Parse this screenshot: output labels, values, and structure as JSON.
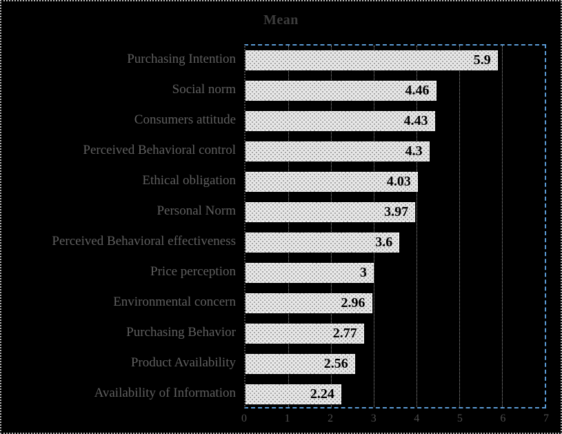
{
  "chart_data": {
    "type": "bar",
    "orientation": "horizontal",
    "title": "Mean",
    "xlabel": "",
    "ylabel": "",
    "categories": [
      "Purchasing Intention",
      "Social norm",
      "Consumers attitude",
      "Perceived Behavioral control",
      "Ethical obligation",
      "Personal Norm",
      "Perceived Behavioral effectiveness",
      "Price perception",
      "Environmental concern",
      "Purchasing Behavior",
      "Product Availability",
      "Availability of Information"
    ],
    "values": [
      5.9,
      4.46,
      4.43,
      4.3,
      4.03,
      3.97,
      3.6,
      3,
      2.96,
      2.77,
      2.56,
      2.24
    ],
    "value_labels": [
      "5.9",
      "4.46",
      "4.43",
      "4.3",
      "4.03",
      "3.97",
      "3.6",
      "3",
      "2.96",
      "2.77",
      "2.56",
      "2.24"
    ],
    "xlim": [
      0,
      7
    ],
    "xticks": [
      0,
      1,
      2,
      3,
      4,
      5,
      6,
      7
    ],
    "grid": "vertical dotted gridlines at integer ticks",
    "legend": "none",
    "colors": {
      "background": "#000000",
      "bar_fill": "#e7e7e7",
      "bar_pattern_dot": "#a3a3a3",
      "bar_border": "#ffffff",
      "value_label": "#000000",
      "plot_border": "#5b9bd5",
      "axis_line": "#4a4a4a",
      "gridline": "#9a9a9a",
      "title": "#3d3d3d",
      "category_label": "#606060",
      "tick_label": "#4e4e4e",
      "outer_border": "#b5b5b5"
    }
  }
}
